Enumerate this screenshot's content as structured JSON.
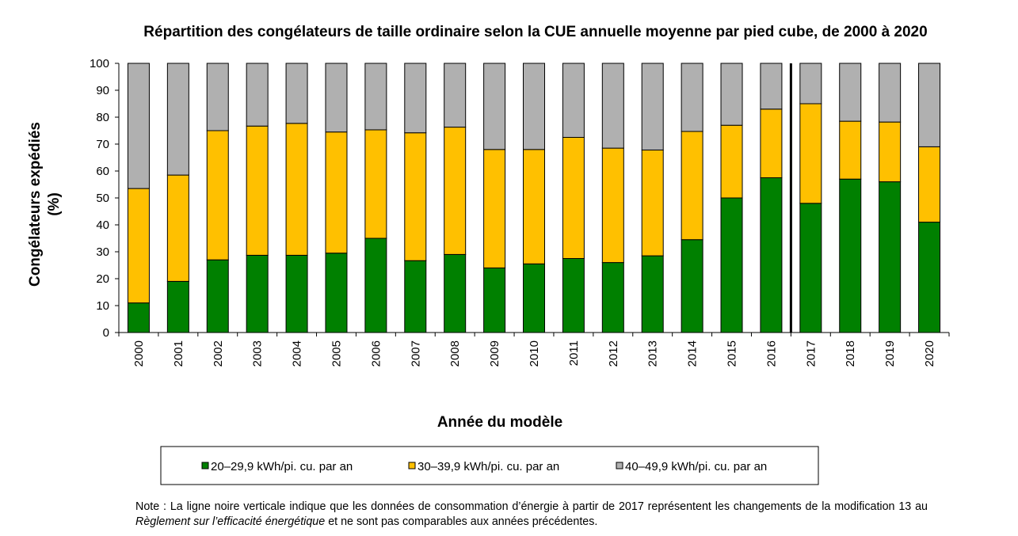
{
  "chart_data": {
    "type": "bar",
    "stacked": true,
    "title": "Répartition des congélateurs de taille ordinaire selon la CUE annuelle moyenne par pied cube, de 2000 à 2020",
    "xlabel": "Année du modèle",
    "ylabel_line1": "Congélateurs expédiés",
    "ylabel_line2": "(%)",
    "ylim": [
      0,
      100
    ],
    "yticks": [
      "0",
      "10",
      "20",
      "30",
      "40",
      "50",
      "60",
      "70",
      "80",
      "90",
      "100"
    ],
    "grid": false,
    "legend_position": "bottom",
    "categories": [
      "2000",
      "2001",
      "2002",
      "2003",
      "2004",
      "2005",
      "2006",
      "2007",
      "2008",
      "2009",
      "2010",
      "2011",
      "2012",
      "2013",
      "2014",
      "2015",
      "2016",
      "2017",
      "2018",
      "2019",
      "2020"
    ],
    "series": [
      {
        "name": "20–29,9 kWh/pi. cu. par an",
        "color": "#008000",
        "values": [
          11,
          19,
          27,
          28.7,
          28.7,
          29.5,
          35,
          26.7,
          29,
          24,
          25.5,
          27.5,
          26,
          28.5,
          34.5,
          50,
          57.5,
          48,
          57,
          56,
          41
        ]
      },
      {
        "name": "30–39,9 kWh/pi. cu. par an",
        "color": "#ffc000",
        "values": [
          42.5,
          39.5,
          48,
          48,
          49,
          45,
          40.3,
          47.5,
          47.3,
          44,
          42.5,
          45,
          42.5,
          39.3,
          40.2,
          27,
          25.5,
          37,
          21.5,
          22.2,
          28
        ]
      },
      {
        "name": "40–49,9 kWh/pi. cu. par an",
        "color": "#b0b0b0",
        "values": [
          46.5,
          41.5,
          25,
          23.3,
          22.3,
          25.5,
          24.7,
          25.8,
          23.7,
          32,
          32,
          27.5,
          31.5,
          32.2,
          25.3,
          23,
          17,
          15,
          21.5,
          21.8,
          31
        ]
      }
    ],
    "divider_after_category": "2016"
  },
  "note": {
    "prefix": "Note : La ligne noire verticale indique que les données de consommation d’énergie à partir de 2017 représentent les changements de la modification 13 au ",
    "italic": "Règlement sur l’efficacité énergétique",
    "suffix": " et ne sont pas comparables aux années précédentes."
  }
}
